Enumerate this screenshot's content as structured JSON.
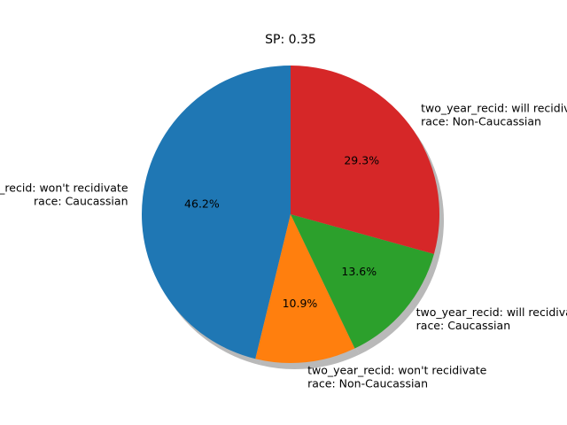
{
  "chart_data": {
    "type": "pie",
    "title": "SP: 0.35",
    "shadow": true,
    "start_angle_deg": 90,
    "direction": "counterclockwise",
    "slices": [
      {
        "label_lines": [
          "two_year_recid: won't recidivate",
          "race: Caucassian"
        ],
        "percent_text": "46.2%",
        "value": 46.2,
        "color": "#1f77b4"
      },
      {
        "label_lines": [
          "two_year_recid: won't recidivate",
          "race: Non-Caucassian"
        ],
        "percent_text": "10.9%",
        "value": 10.9,
        "color": "#ff7f0e"
      },
      {
        "label_lines": [
          "two_year_recid: will recidivate",
          "race: Caucassian"
        ],
        "percent_text": "13.6%",
        "value": 13.6,
        "color": "#2ca02c"
      },
      {
        "label_lines": [
          "two_year_recid: will recidivate",
          "race: Non-Caucassian"
        ],
        "percent_text": "29.3%",
        "value": 29.3,
        "color": "#d62728"
      }
    ]
  }
}
